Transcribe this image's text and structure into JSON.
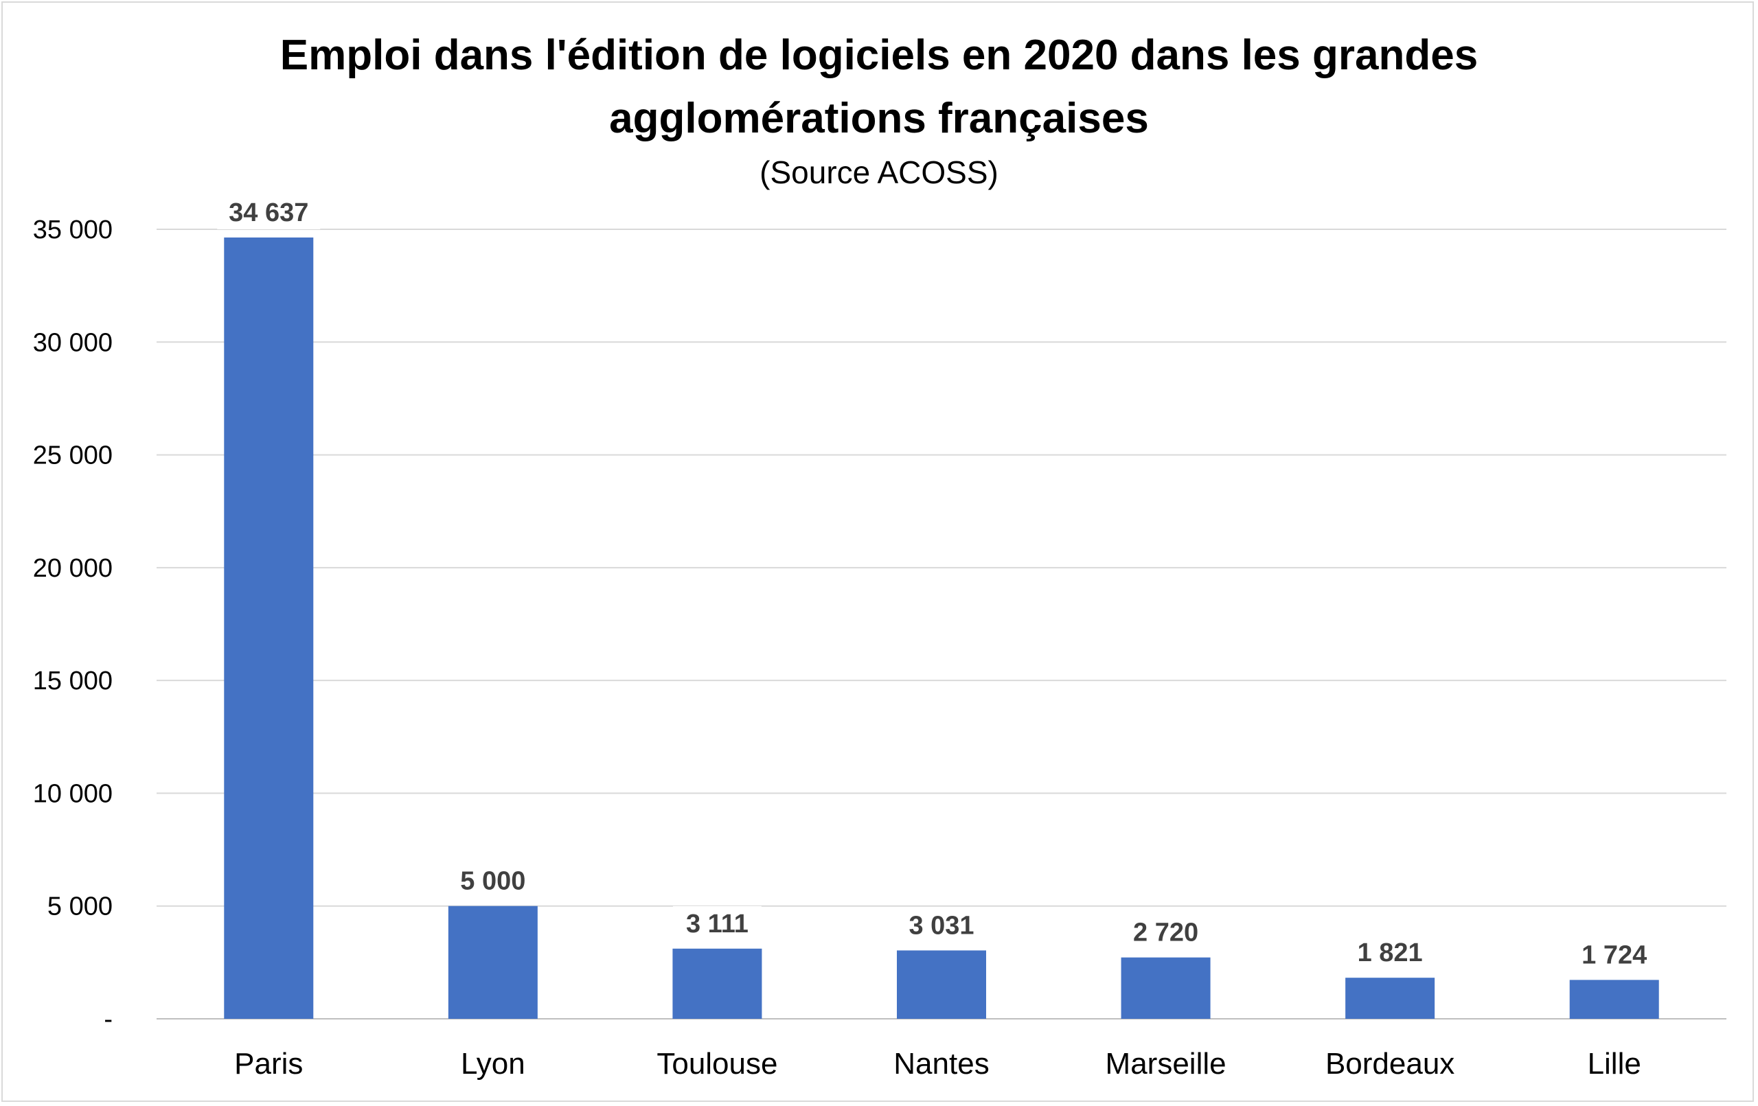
{
  "chart_data": {
    "type": "bar",
    "title_line1": "Emploi dans l'édition de logiciels en 2020 dans les grandes",
    "title_line2": "agglomérations françaises",
    "subtitle": "(Source  ACOSS)",
    "categories": [
      "Paris",
      "Lyon",
      "Toulouse",
      "Nantes",
      "Marseille",
      "Bordeaux",
      "Lille"
    ],
    "values": [
      34637,
      5000,
      3111,
      3031,
      2720,
      1821,
      1724
    ],
    "value_labels": [
      "34 637",
      "5 000",
      "3 111",
      "3 031",
      "2 720",
      "1 821",
      "1 724"
    ],
    "y_ticks": [
      0,
      5000,
      10000,
      15000,
      20000,
      25000,
      30000,
      35000
    ],
    "y_tick_labels": [
      "-",
      "5 000",
      "10 000",
      "15 000",
      "20 000",
      "25 000",
      "30 000",
      "35 000"
    ],
    "ylim": [
      0,
      35000
    ],
    "xlabel": "",
    "ylabel": "",
    "grid": true,
    "legend": "none",
    "bar_color": "#4472c4",
    "grid_color": "#d9d9d9",
    "axis_color": "#bfbfbf"
  }
}
